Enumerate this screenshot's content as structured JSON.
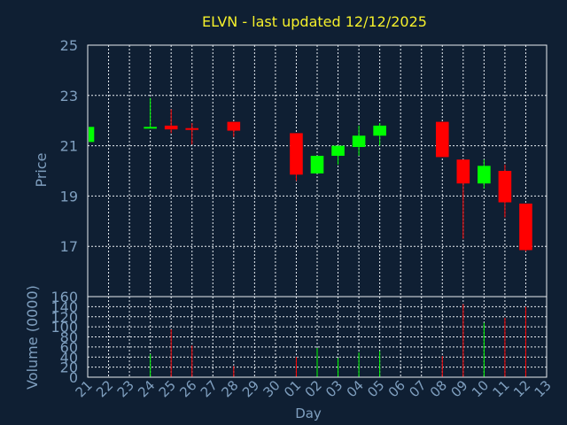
{
  "chart_data": {
    "type": "candlestick",
    "title": "ELVN - last updated 12/12/2025",
    "price_panel": {
      "ylabel": "Price",
      "ylim": [
        15.0,
        25.0
      ],
      "yticks": [
        17,
        19,
        21,
        23,
        25
      ],
      "grid": true
    },
    "volume_panel": {
      "ylabel": "Volume (0000)",
      "ylim": [
        0,
        160
      ],
      "yticks": [
        0,
        20,
        40,
        60,
        80,
        100,
        120,
        140,
        160
      ],
      "grid": true
    },
    "xlabel": "Day",
    "xticks": [
      "21",
      "22",
      "23",
      "24",
      "25",
      "26",
      "27",
      "28",
      "29",
      "30",
      "01",
      "02",
      "03",
      "04",
      "05",
      "06",
      "07",
      "08",
      "09",
      "10",
      "11",
      "12",
      "13"
    ],
    "up_color": "#00ff00",
    "down_color": "#ff0000",
    "candles": [
      {
        "day": "21",
        "open": 21.15,
        "close": 21.75,
        "high": 21.75,
        "low": 21.15,
        "volume": 0
      },
      {
        "day": "24",
        "open": 21.7,
        "close": 21.75,
        "high": 22.9,
        "low": 21.7,
        "volume": 46
      },
      {
        "day": "25",
        "open": 21.8,
        "close": 21.65,
        "high": 22.45,
        "low": 21.5,
        "volume": 95
      },
      {
        "day": "26",
        "open": 21.7,
        "close": 21.68,
        "high": 21.9,
        "low": 21.05,
        "volume": 63
      },
      {
        "day": "28",
        "open": 21.95,
        "close": 21.6,
        "high": 21.95,
        "low": 21.35,
        "volume": 22
      },
      {
        "day": "01",
        "open": 21.5,
        "close": 19.85,
        "high": 21.5,
        "low": 19.6,
        "volume": 40
      },
      {
        "day": "02",
        "open": 19.9,
        "close": 20.6,
        "high": 20.6,
        "low": 19.9,
        "volume": 58
      },
      {
        "day": "03",
        "open": 20.6,
        "close": 21.0,
        "high": 21.0,
        "low": 20.25,
        "volume": 38
      },
      {
        "day": "04",
        "open": 20.95,
        "close": 21.4,
        "high": 21.8,
        "low": 20.6,
        "volume": 49
      },
      {
        "day": "05",
        "open": 21.4,
        "close": 21.8,
        "high": 21.9,
        "low": 21.0,
        "volume": 52
      },
      {
        "day": "08",
        "open": 21.95,
        "close": 20.55,
        "high": 21.95,
        "low": 20.55,
        "volume": 42
      },
      {
        "day": "09",
        "open": 20.45,
        "close": 19.5,
        "high": 20.45,
        "low": 17.3,
        "volume": 145
      },
      {
        "day": "10",
        "open": 19.5,
        "close": 20.2,
        "high": 20.45,
        "low": 19.3,
        "volume": 108
      },
      {
        "day": "11",
        "open": 20.0,
        "close": 18.75,
        "high": 20.25,
        "low": 18.15,
        "volume": 118
      },
      {
        "day": "12",
        "open": 18.7,
        "close": 16.85,
        "high": 18.7,
        "low": 16.8,
        "volume": 140
      }
    ]
  }
}
